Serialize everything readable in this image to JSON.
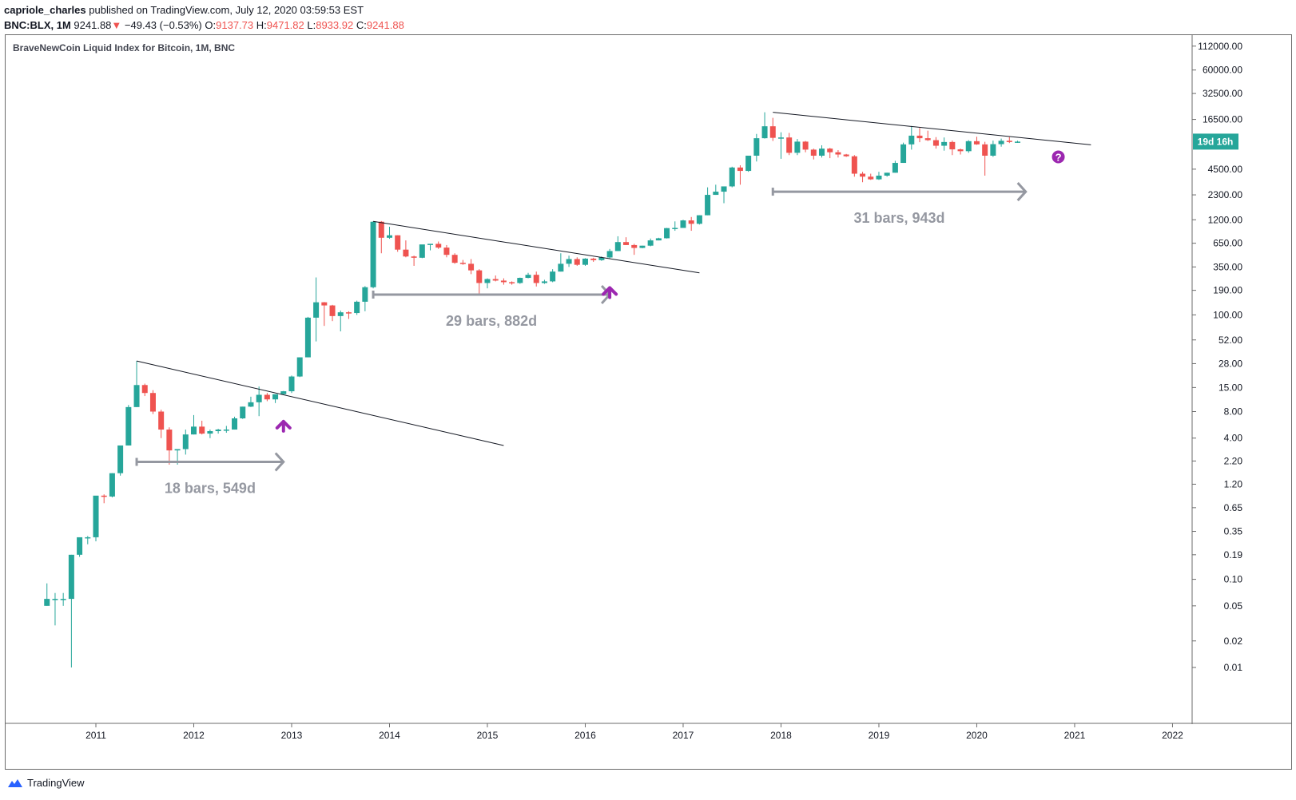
{
  "header": {
    "author": "capriole_charles",
    "published": "published on TradingView.com, July 12, 2020 03:59:53 EST",
    "symbol": "BNC:BLX, 1M",
    "last": "9241.88",
    "change": "−49.43 (−0.53%)",
    "o_label": "O:",
    "o_value": "9137.73",
    "h_label": "H:",
    "h_value": "9471.82",
    "l_label": "L:",
    "l_value": "8933.92",
    "c_label": "C:",
    "c_value": "9241.88"
  },
  "chart_title": "BraveNewCoin Liquid Index for Bitcoin, 1M, BNC",
  "footer": {
    "brand": "TradingView"
  },
  "colors": {
    "up": "#26a69a",
    "down": "#ef5350",
    "annot": "#9598a1",
    "arrow": "#9c27b0",
    "badge": "#26a69a"
  },
  "chart_data": {
    "type": "candlestick",
    "scale": "log",
    "title": "BraveNewCoin Liquid Index for Bitcoin, 1M, BNC",
    "y_ticks": [
      "112000.00",
      "60000.00",
      "32500.00",
      "16500.00",
      "4500.00",
      "2300.00",
      "1200.00",
      "650.00",
      "350.00",
      "190.00",
      "100.00",
      "52.00",
      "28.00",
      "15.00",
      "8.00",
      "4.00",
      "2.20",
      "1.20",
      "0.65",
      "0.35",
      "0.19",
      "0.10",
      "0.05",
      "0.02",
      "0.01"
    ],
    "x_ticks": [
      "2011",
      "2012",
      "2013",
      "2014",
      "2015",
      "2016",
      "2017",
      "2018",
      "2019",
      "2020",
      "2021",
      "2022"
    ],
    "countdown_badge": "19d 16h",
    "annotations": [
      {
        "label": "18 bars, 549d"
      },
      {
        "label": "29 bars, 882d"
      },
      {
        "label": "31 bars, 943d"
      }
    ],
    "question_mark": "?",
    "start": "2010-07",
    "candles": [
      [
        0.05,
        0.09,
        0.05,
        0.06
      ],
      [
        0.06,
        0.07,
        0.03,
        0.06
      ],
      [
        0.06,
        0.07,
        0.05,
        0.06
      ],
      [
        0.06,
        0.19,
        0.01,
        0.19
      ],
      [
        0.19,
        0.24,
        0.18,
        0.3
      ],
      [
        0.3,
        0.31,
        0.25,
        0.3
      ],
      [
        0.3,
        0.5,
        0.27,
        0.89
      ],
      [
        0.89,
        0.92,
        0.73,
        0.87
      ],
      [
        0.87,
        1.6,
        0.85,
        1.6
      ],
      [
        1.6,
        1.9,
        1.5,
        3.3
      ],
      [
        3.3,
        9.5,
        3.3,
        9.0
      ],
      [
        9.0,
        30.0,
        9.0,
        16.0
      ],
      [
        16.0,
        16.6,
        12.0,
        13.0
      ],
      [
        13.0,
        14.0,
        7.5,
        8.0
      ],
      [
        8.0,
        8.4,
        4.0,
        5.0
      ],
      [
        5.0,
        5.3,
        2.0,
        2.9
      ],
      [
        2.9,
        3.0,
        2.0,
        3.0
      ],
      [
        3.0,
        5.0,
        2.6,
        4.4
      ],
      [
        4.4,
        7.3,
        4.4,
        5.4
      ],
      [
        5.4,
        6.3,
        4.4,
        4.5
      ],
      [
        4.5,
        5.0,
        4.0,
        4.8
      ],
      [
        4.8,
        5.1,
        4.5,
        5.0
      ],
      [
        5.0,
        5.5,
        4.6,
        5.0
      ],
      [
        5.0,
        7.0,
        5.0,
        6.7
      ],
      [
        6.7,
        9.1,
        6.6,
        9.1
      ],
      [
        9.1,
        11.8,
        9.0,
        10.2
      ],
      [
        10.2,
        15.4,
        7.1,
        12.4
      ],
      [
        12.4,
        13.0,
        10.5,
        11.0
      ],
      [
        11.0,
        11.9,
        10.0,
        12.6
      ],
      [
        12.6,
        13.7,
        12.6,
        13.6
      ],
      [
        13.6,
        20.5,
        13.0,
        20.0
      ],
      [
        20.0,
        33.0,
        19.7,
        33.0
      ],
      [
        33.0,
        95.0,
        33.0,
        93.0
      ],
      [
        93.0,
        266.0,
        50.0,
        139.0
      ],
      [
        139.0,
        140.0,
        75.0,
        128.0
      ],
      [
        128.0,
        130.0,
        85.0,
        97.0
      ],
      [
        97.0,
        112.0,
        65.0,
        107.0
      ],
      [
        107.0,
        110.0,
        90.0,
        105.0
      ],
      [
        105.0,
        145.0,
        100.0,
        141.0
      ],
      [
        141.0,
        212.0,
        110.0,
        206.0
      ],
      [
        206.0,
        1150.0,
        200.0,
        1140.0
      ],
      [
        1140.0,
        1160.0,
        500.0,
        750.0
      ],
      [
        750.0,
        1000.0,
        730.0,
        800.0
      ],
      [
        800.0,
        800.0,
        520.0,
        550.0
      ],
      [
        550.0,
        700.0,
        450.0,
        460.0
      ],
      [
        460.0,
        470.0,
        360.0,
        445.0
      ],
      [
        445.0,
        600.0,
        440.0,
        630.0
      ],
      [
        630.0,
        640.0,
        540.0,
        640.0
      ],
      [
        640.0,
        680.0,
        560.0,
        580.0
      ],
      [
        580.0,
        620.0,
        450.0,
        480.0
      ],
      [
        480.0,
        500.0,
        380.0,
        390.0
      ],
      [
        390.0,
        420.0,
        370.0,
        380.0
      ],
      [
        380.0,
        430.0,
        290.0,
        320.0
      ],
      [
        320.0,
        330.0,
        170.0,
        230.0
      ],
      [
        230.0,
        260.0,
        200.0,
        255.0
      ],
      [
        255.0,
        280.0,
        240.0,
        245.0
      ],
      [
        245.0,
        260.0,
        220.0,
        235.0
      ],
      [
        235.0,
        240.0,
        220.0,
        230.0
      ],
      [
        230.0,
        265.0,
        225.0,
        263.0
      ],
      [
        263.0,
        300.0,
        260.0,
        285.0
      ],
      [
        285.0,
        310.0,
        210.0,
        230.0
      ],
      [
        230.0,
        250.0,
        225.0,
        240.0
      ],
      [
        240.0,
        330.0,
        235.0,
        310.0
      ],
      [
        310.0,
        500.0,
        310.0,
        380.0
      ],
      [
        380.0,
        470.0,
        350.0,
        430.0
      ],
      [
        430.0,
        450.0,
        360.0,
        370.0
      ],
      [
        370.0,
        440.0,
        360.0,
        435.0
      ],
      [
        435.0,
        445.0,
        400.0,
        418.0
      ],
      [
        418.0,
        460.0,
        410.0,
        448.0
      ],
      [
        448.0,
        560.0,
        440.0,
        530.0
      ],
      [
        530.0,
        780.0,
        530.0,
        670.0
      ],
      [
        670.0,
        760.0,
        620.0,
        620.0
      ],
      [
        620.0,
        640.0,
        480.0,
        575.0
      ],
      [
        575.0,
        610.0,
        570.0,
        610.0
      ],
      [
        610.0,
        735.0,
        600.0,
        700.0
      ],
      [
        700.0,
        750.0,
        700.0,
        740.0
      ],
      [
        740.0,
        970.0,
        735.0,
        965.0
      ],
      [
        965.0,
        1150.0,
        900.0,
        970.0
      ],
      [
        970.0,
        1200.0,
        980.0,
        1180.0
      ],
      [
        1180.0,
        1290.0,
        900.0,
        1080.0
      ],
      [
        1080.0,
        1350.0,
        1060.0,
        1350.0
      ],
      [
        1350.0,
        2800.0,
        1350.0,
        2300.0
      ],
      [
        2300.0,
        3000.0,
        2300.0,
        2500.0
      ],
      [
        2500.0,
        2800.0,
        1850.0,
        2870.0
      ],
      [
        2870.0,
        4800.0,
        2800.0,
        4700.0
      ],
      [
        4700.0,
        4980.0,
        3000.0,
        4300.0
      ],
      [
        4300.0,
        6400.0,
        4200.0,
        6400.0
      ],
      [
        6400.0,
        11300.0,
        5500.0,
        10100.0
      ],
      [
        10100.0,
        19900.0,
        10000.0,
        13800.0
      ],
      [
        13800.0,
        17200.0,
        9400.0,
        10200.0
      ],
      [
        10200.0,
        11800.0,
        5900.0,
        10300.0
      ],
      [
        10300.0,
        11600.0,
        6500.0,
        6900.0
      ],
      [
        6900.0,
        9900.0,
        6500.0,
        9240.0
      ],
      [
        9240.0,
        9400.0,
        7000.0,
        7500.0
      ],
      [
        7500.0,
        7700.0,
        5800.0,
        6400.0
      ],
      [
        6400.0,
        8400.0,
        6100.0,
        7700.0
      ],
      [
        7700.0,
        7850.0,
        6000.0,
        7000.0
      ],
      [
        7000.0,
        7400.0,
        6100.0,
        6600.0
      ],
      [
        6600.0,
        6700.0,
        6200.0,
        6300.0
      ],
      [
        6300.0,
        6500.0,
        3700.0,
        4000.0
      ],
      [
        4000.0,
        4200.0,
        3200.0,
        3700.0
      ],
      [
        3700.0,
        4000.0,
        3400.0,
        3450.0
      ],
      [
        3450.0,
        4200.0,
        3400.0,
        3800.0
      ],
      [
        3800.0,
        4100.0,
        3700.0,
        4100.0
      ],
      [
        4100.0,
        5600.0,
        4100.0,
        5300.0
      ],
      [
        5300.0,
        9000.0,
        5300.0,
        8600.0
      ],
      [
        8600.0,
        13900.0,
        7500.0,
        10800.0
      ],
      [
        10800.0,
        13200.0,
        9100.0,
        10100.0
      ],
      [
        10100.0,
        12300.0,
        9400.0,
        9600.0
      ],
      [
        9600.0,
        10400.0,
        7700.0,
        8300.0
      ],
      [
        8300.0,
        10300.0,
        7300.0,
        9150.0
      ],
      [
        9150.0,
        9500.0,
        6500.0,
        7550.0
      ],
      [
        7550.0,
        7700.0,
        6600.0,
        7200.0
      ],
      [
        7200.0,
        9600.0,
        6900.0,
        9350.0
      ],
      [
        9350.0,
        10500.0,
        8500.0,
        8600.0
      ],
      [
        8600.0,
        9200.0,
        3800.0,
        6400.0
      ],
      [
        6400.0,
        9500.0,
        6200.0,
        8650.0
      ],
      [
        8650.0,
        10000.0,
        8100.0,
        9450.0
      ],
      [
        9450.0,
        10400.0,
        8900.0,
        9140.0
      ],
      [
        9137.73,
        9471.82,
        8933.92,
        9241.88
      ]
    ]
  }
}
